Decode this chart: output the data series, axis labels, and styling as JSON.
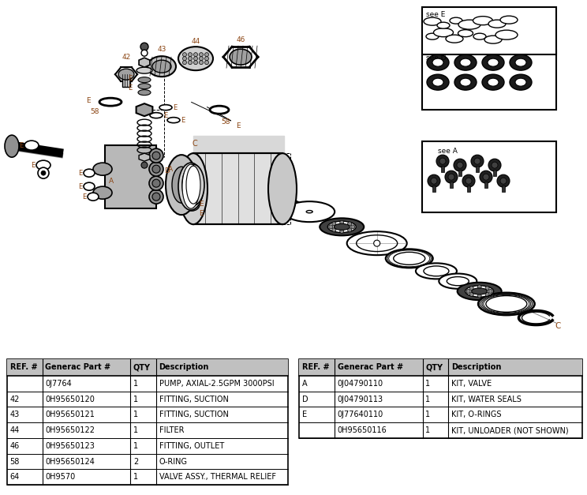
{
  "table1": {
    "headers": [
      "REF. #",
      "Generac Part #",
      "QTY",
      "Description"
    ],
    "rows": [
      [
        "",
        "0J7764",
        "1",
        "PUMP, AXIAL-2.5GPM 3000PSI"
      ],
      [
        "42",
        "0H95650120",
        "1",
        "FITTING, SUCTION"
      ],
      [
        "43",
        "0H95650121",
        "1",
        "FITTING, SUCTION"
      ],
      [
        "44",
        "0H95650122",
        "1",
        "FILTER"
      ],
      [
        "46",
        "0H95650123",
        "1",
        "FITTING, OUTLET"
      ],
      [
        "58",
        "0H95650124",
        "2",
        "O-RING"
      ],
      [
        "64",
        "0H9570",
        "1",
        "VALVE ASSY., THERMAL RELIEF"
      ]
    ]
  },
  "table2": {
    "headers": [
      "REF. #",
      "Generac Part #",
      "QTY",
      "Description"
    ],
    "rows": [
      [
        "A",
        "0J04790110",
        "1",
        "KIT, VALVE"
      ],
      [
        "D",
        "0J04790113",
        "1",
        "KIT, WATER SEALS"
      ],
      [
        "E",
        "0J77640110",
        "1",
        "KIT, O-RINGS"
      ],
      [
        "",
        "0H95650116",
        "1",
        "KIT, UNLOADER (NOT SHOWN)"
      ]
    ]
  },
  "bg_color": "#ffffff"
}
